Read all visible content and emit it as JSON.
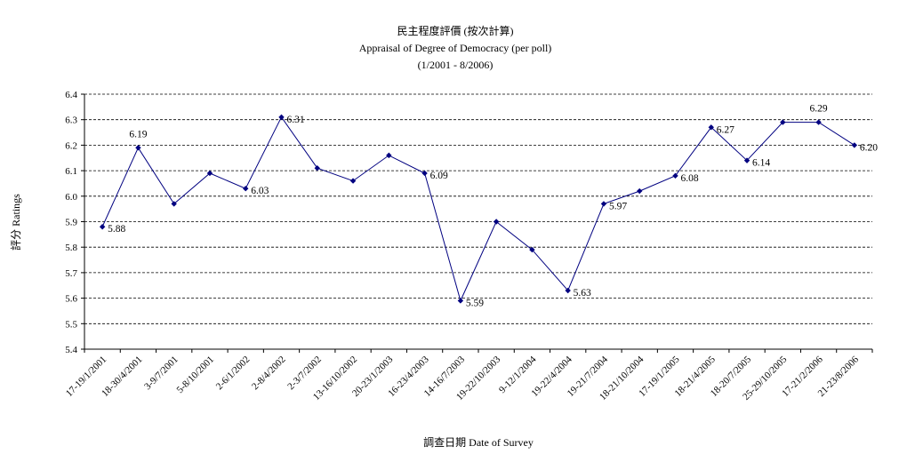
{
  "chart_data": {
    "type": "line",
    "title": [
      "民主程度評價 (按次計算)",
      "Appraisal of Degree of Democracy (per poll)",
      "(1/2001 - 8/2006)"
    ],
    "xlabel": "調查日期 Date of Survey",
    "ylabel": "評分 Ratings",
    "ylim": [
      5.4,
      6.4
    ],
    "yticks": [
      "5.4",
      "5.5",
      "5.6",
      "5.7",
      "5.8",
      "5.9",
      "6.0",
      "6.1",
      "6.2",
      "6.3",
      "6.4"
    ],
    "grid": "horizontal dashed",
    "legend": "none",
    "line_color": "#000080",
    "categories": [
      "17-19/1/2001",
      "18-30/4/2001",
      "3-9/7/2001",
      "5-8/10/2001",
      "2-6/1/2002",
      "2-8/4/2002",
      "2-3/7/2002",
      "13-16/10/2002",
      "20-23/1/2003",
      "16-23/4/2003",
      "14-16/7/2003",
      "19-22/10/2003",
      "9-12/1/2004",
      "19-22/4/2004",
      "19-21/7/2004",
      "18-21/10/2004",
      "17-19/1/2005",
      "18-21/4/2005",
      "18-20/7/2005",
      "25-29/10/2005",
      "17-21/2/2006",
      "21-23/8/2006"
    ],
    "series": [
      {
        "values": [
          5.88,
          6.19,
          5.97,
          6.09,
          6.03,
          6.31,
          6.11,
          6.06,
          6.16,
          6.09,
          5.59,
          5.9,
          5.79,
          5.63,
          5.97,
          6.02,
          6.08,
          6.27,
          6.14,
          6.29,
          6.29,
          6.2
        ]
      }
    ],
    "data_labels": [
      {
        "index": 0,
        "text": "5.88"
      },
      {
        "index": 1,
        "text": "6.19"
      },
      {
        "index": 4,
        "text": "6.03"
      },
      {
        "index": 5,
        "text": "6.31"
      },
      {
        "index": 9,
        "text": "6.09"
      },
      {
        "index": 10,
        "text": "5.59"
      },
      {
        "index": 13,
        "text": "5.63"
      },
      {
        "index": 14,
        "text": "5.97"
      },
      {
        "index": 16,
        "text": "6.08"
      },
      {
        "index": 17,
        "text": "6.27"
      },
      {
        "index": 18,
        "text": "6.14"
      },
      {
        "index": 20,
        "text": "6.29"
      },
      {
        "index": 21,
        "text": "6.20"
      }
    ]
  }
}
